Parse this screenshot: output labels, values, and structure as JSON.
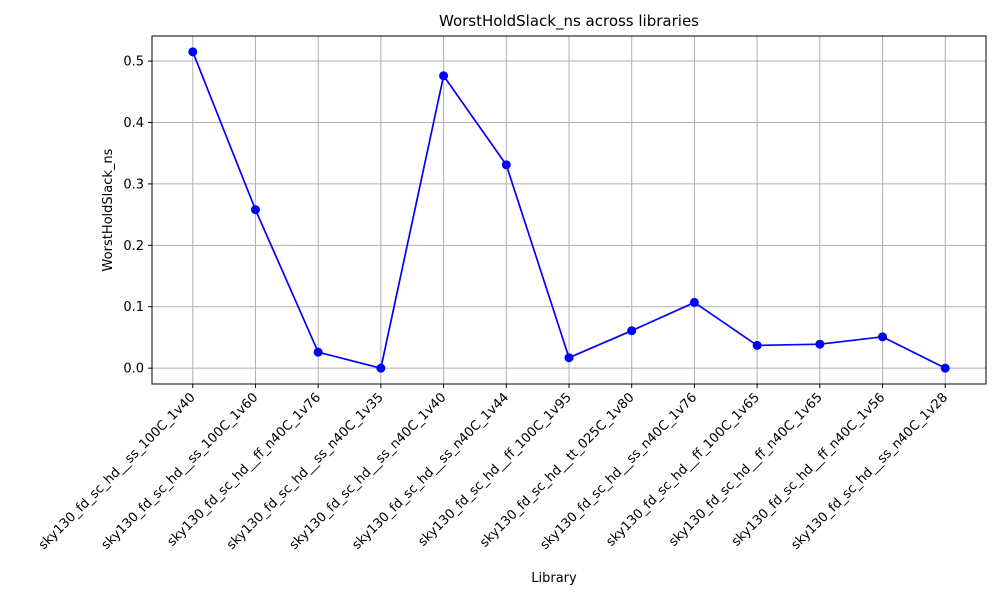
{
  "chart_data": {
    "type": "line",
    "title": "WorstHoldSlack_ns across libraries",
    "xlabel": "Library",
    "ylabel": "WorstHoldSlack_ns",
    "categories": [
      "sky130_fd_sc_hd__ss_100C_1v40",
      "sky130_fd_sc_hd__ss_100C_1v60",
      "sky130_fd_sc_hd__ff_n40C_1v76",
      "sky130_fd_sc_hd__ss_n40C_1v35",
      "sky130_fd_sc_hd__ss_n40C_1v40",
      "sky130_fd_sc_hd__ss_n40C_1v44",
      "sky130_fd_sc_hd__ff_100C_1v95",
      "sky130_fd_sc_hd__tt_025C_1v80",
      "sky130_fd_sc_hd__ss_n40C_1v76",
      "sky130_fd_sc_hd__ff_100C_1v65",
      "sky130_fd_sc_hd__ff_n40C_1v65",
      "sky130_fd_sc_hd__ff_n40C_1v56",
      "sky130_fd_sc_hd__ss_n40C_1v28"
    ],
    "values": [
      0.515,
      0.258,
      0.026,
      0.0,
      0.476,
      0.331,
      0.017,
      0.061,
      0.107,
      0.037,
      0.039,
      0.051,
      0.0
    ],
    "ylim": [
      -0.0258,
      0.5408
    ],
    "yticks": [
      0.0,
      0.1,
      0.2,
      0.3,
      0.4,
      0.5
    ],
    "grid": true,
    "line_color": "#0000ff",
    "marker_color": "#0000ff"
  }
}
